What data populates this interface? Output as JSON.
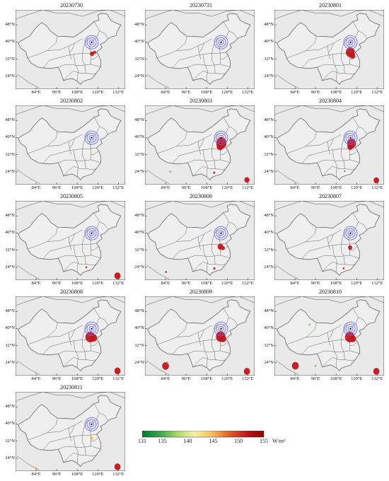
{
  "panels": [
    {
      "date": "20230730",
      "hotspots": [
        {
          "lon": 116.6,
          "lat": 34.5,
          "r": 1.2,
          "level": "high"
        },
        {
          "lon": 118.2,
          "lat": 35.2,
          "r": 0.8,
          "level": "high"
        }
      ]
    },
    {
      "date": "20230731",
      "hotspots": []
    },
    {
      "date": "20230801",
      "hotspots": [
        {
          "lon": 116.3,
          "lat": 35.2,
          "r": 2.6,
          "level": "high"
        },
        {
          "lon": 117.6,
          "lat": 33.6,
          "r": 1.6,
          "level": "high"
        }
      ]
    },
    {
      "date": "20230802",
      "hotspots": []
    },
    {
      "date": "20230803",
      "hotspots": [
        {
          "lon": 116.6,
          "lat": 37.4,
          "r": 3.0,
          "level": "high"
        },
        {
          "lon": 115.8,
          "lat": 35.8,
          "r": 2.0,
          "level": "high"
        },
        {
          "lon": 86.8,
          "lat": 24.0,
          "r": 0.5,
          "level": "low"
        },
        {
          "lon": 112.4,
          "lat": 23.6,
          "r": 0.6,
          "level": "high"
        },
        {
          "lon": 131.5,
          "lat": 20.2,
          "r": 1.5,
          "level": "high"
        }
      ]
    },
    {
      "date": "20230804",
      "hotspots": [
        {
          "lon": 117.0,
          "lat": 37.2,
          "r": 2.6,
          "level": "high"
        },
        {
          "lon": 116.2,
          "lat": 35.6,
          "r": 1.6,
          "level": "high"
        },
        {
          "lon": 113.0,
          "lat": 24.3,
          "r": 0.4,
          "level": "high"
        },
        {
          "lon": 131.5,
          "lat": 20.0,
          "r": 1.6,
          "level": "high"
        }
      ]
    },
    {
      "date": "20230805",
      "hotspots": [
        {
          "lon": 113.3,
          "lat": 24.0,
          "r": 0.5,
          "level": "high"
        },
        {
          "lon": 131.5,
          "lat": 20.0,
          "r": 1.8,
          "level": "high"
        }
      ]
    },
    {
      "date": "20230806",
      "hotspots": [
        {
          "lon": 116.0,
          "lat": 33.6,
          "r": 1.6,
          "level": "high"
        },
        {
          "lon": 117.6,
          "lat": 33.0,
          "r": 1.0,
          "level": "high"
        },
        {
          "lon": 84.3,
          "lat": 21.8,
          "r": 0.5,
          "level": "high"
        },
        {
          "lon": 112.5,
          "lat": 23.4,
          "r": 0.6,
          "level": "high"
        }
      ]
    },
    {
      "date": "20230807",
      "hotspots": [
        {
          "lon": 116.2,
          "lat": 33.2,
          "r": 1.2,
          "level": "high"
        },
        {
          "lon": 112.4,
          "lat": 23.5,
          "r": 0.5,
          "level": "high"
        }
      ]
    },
    {
      "date": "20230808",
      "hotspots": [
        {
          "lon": 115.6,
          "lat": 36.0,
          "r": 2.8,
          "level": "high"
        },
        {
          "lon": 117.6,
          "lat": 35.6,
          "r": 2.0,
          "level": "high"
        },
        {
          "lon": 131.5,
          "lat": 20.2,
          "r": 1.8,
          "level": "high"
        }
      ]
    },
    {
      "date": "20230809",
      "hotspots": [
        {
          "lon": 116.2,
          "lat": 36.2,
          "r": 2.8,
          "level": "high"
        },
        {
          "lon": 117.6,
          "lat": 35.2,
          "r": 1.8,
          "level": "high"
        },
        {
          "lon": 84.0,
          "lat": 22.5,
          "r": 2.0,
          "level": "high"
        },
        {
          "lon": 85.0,
          "lat": 24.2,
          "r": 0.5,
          "level": "mid"
        },
        {
          "lon": 131.5,
          "lat": 20.0,
          "r": 1.8,
          "level": "high"
        }
      ]
    },
    {
      "date": "20230810",
      "hotspots": [
        {
          "lon": 116.0,
          "lat": 36.0,
          "r": 2.8,
          "level": "high"
        },
        {
          "lon": 117.8,
          "lat": 35.2,
          "r": 1.8,
          "level": "high"
        },
        {
          "lon": 84.2,
          "lat": 22.6,
          "r": 2.0,
          "level": "high"
        },
        {
          "lon": 92.5,
          "lat": 41.8,
          "r": 0.5,
          "level": "low"
        },
        {
          "lon": 96.0,
          "lat": 22.5,
          "r": 0.5,
          "level": "low"
        },
        {
          "lon": 131.5,
          "lat": 20.0,
          "r": 1.8,
          "level": "high"
        }
      ]
    },
    {
      "date": "20230811",
      "hotspots": [
        {
          "lon": 84.0,
          "lat": 19.2,
          "r": 0.6,
          "level": "mid"
        },
        {
          "lon": 131.5,
          "lat": 20.0,
          "r": 1.8,
          "level": "high"
        },
        {
          "lon": 116.4,
          "lat": 33.4,
          "r": 0.7,
          "level": "mid"
        }
      ]
    }
  ],
  "x_ticks": [
    "84°E",
    "96°E",
    "108°E",
    "120°E",
    "132°E"
  ],
  "y_ticks": [
    "48°N",
    "40°N",
    "32°N",
    "24°N"
  ],
  "lon_range": [
    72,
    136
  ],
  "lat_range": [
    18,
    55
  ],
  "tick_lons": [
    84,
    96,
    108,
    120,
    132
  ],
  "tick_lats": [
    48,
    40,
    32,
    24
  ],
  "center": {
    "lon": 116.4,
    "lat": 39.9
  },
  "colorbar": {
    "min": 131,
    "max": 155,
    "ticks": [
      "131",
      "135",
      "140",
      "145",
      "150",
      "155"
    ],
    "tick_values": [
      131,
      135,
      140,
      145,
      150,
      155
    ],
    "unit": "W/m²",
    "colors": [
      "#007a33",
      "#3ca34a",
      "#a9d66b",
      "#f4f1a8",
      "#f7c05c",
      "#e0602a",
      "#c0161b",
      "#8b0000"
    ]
  },
  "colors": {
    "map_bg": "#e9e9e9",
    "border": "#555555",
    "ring": "#6a6af0",
    "hot_high": "#c0161b",
    "hot_mid": "#f0a030",
    "hot_low": "#6cc04a",
    "center": "#000000"
  }
}
